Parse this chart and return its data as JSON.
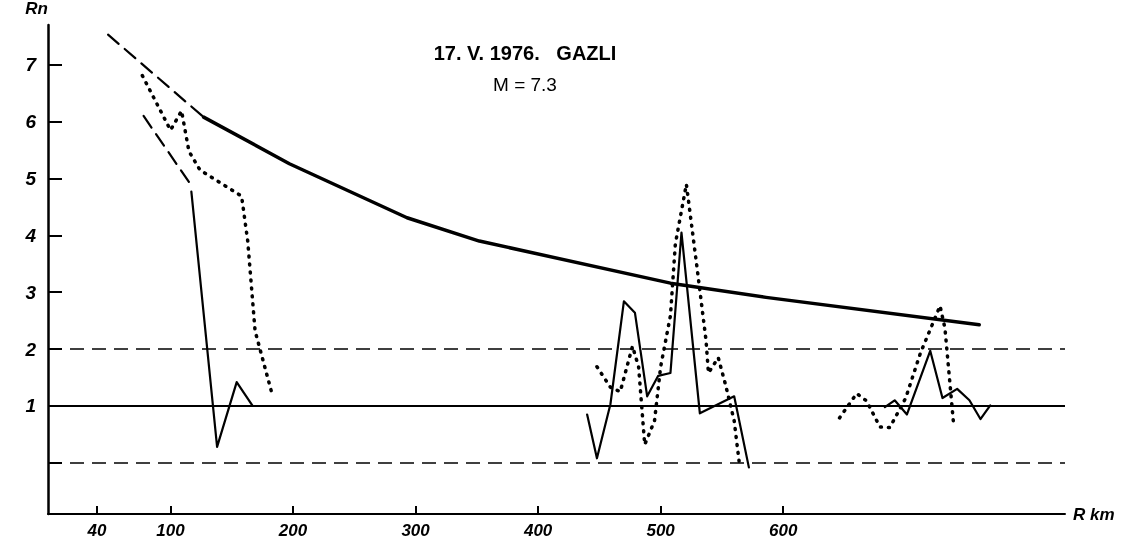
{
  "chart_data": {
    "type": "line",
    "title": "17. V. 1976.   GAZLI",
    "subtitle": "M = 7.3",
    "xlabel": "R km",
    "ylabel": "Rn",
    "xlim": [
      0,
      830
    ],
    "xticks": [
      40,
      100,
      200,
      300,
      400,
      500,
      600
    ],
    "ylim": [
      -0.9,
      7.7
    ],
    "yticks": [
      {
        "value": 0,
        "label": null
      },
      1,
      2,
      3,
      4,
      5,
      6,
      7
    ],
    "grid": false,
    "legend": false,
    "marker": "none",
    "ref_lines": [
      {
        "axis": "y",
        "value": 1,
        "line_style": "solid",
        "color": "#000000"
      },
      {
        "axis": "y",
        "value": 2,
        "line_style": "dashed",
        "color": "#000000"
      },
      {
        "axis": "y",
        "value": 0,
        "line_style": "dashed",
        "color": "#000000"
      }
    ],
    "series": [
      {
        "color": "#000000",
        "line_style": "solid",
        "x": [
          127,
          197,
          293,
          352,
          508,
          586,
          760
        ],
        "values": [
          6.08,
          5.26,
          4.31,
          3.9,
          3.16,
          2.91,
          2.43
        ]
      },
      {
        "color": "#000000",
        "line_style": "dashed",
        "x": [
          49,
          127
        ],
        "values": [
          7.53,
          6.08
        ]
      },
      {
        "color": "#000000",
        "line_style": "dashed",
        "x": [
          78,
          115
        ],
        "values": [
          6.1,
          4.94
        ]
      },
      {
        "color": "#000000",
        "line_style": "solid",
        "x": [
          117,
          138,
          154,
          167,
          300,
          440,
          448,
          459,
          470,
          479,
          489,
          498,
          508,
          517,
          532,
          560,
          572,
          620,
          683,
          691,
          701,
          720,
          730,
          742,
          752,
          761,
          769
        ],
        "values": [
          4.77,
          0.28,
          1.42,
          1.0,
          null,
          0.85,
          0.08,
          1.03,
          2.84,
          2.64,
          1.17,
          1.53,
          1.58,
          4.05,
          0.87,
          1.17,
          -0.08,
          null,
          0.98,
          1.1,
          0.85,
          1.97,
          1.14,
          1.3,
          1.1,
          0.77,
          1.01
        ]
      },
      {
        "color": "#000000",
        "line_style": "dotted",
        "x": [
          77,
          100,
          109,
          115,
          124,
          158,
          163,
          169,
          183,
          300,
          448,
          459,
          467,
          477,
          482,
          487,
          495,
          500,
          508,
          512,
          521,
          530,
          537,
          539,
          547,
          553,
          560,
          564,
          600,
          646,
          660,
          668,
          679,
          687,
          700,
          712,
          728,
          732,
          736,
          739
        ],
        "values": [
          6.81,
          5.85,
          6.19,
          5.48,
          5.15,
          4.69,
          3.9,
          2.32,
          1.2,
          null,
          1.69,
          1.33,
          1.25,
          2.05,
          1.69,
          0.32,
          0.74,
          1.69,
          2.59,
          3.85,
          4.9,
          3.38,
          2.16,
          1.58,
          1.85,
          1.37,
          0.74,
          0.03,
          null,
          0.79,
          1.22,
          1.09,
          0.63,
          0.62,
          1.14,
          1.93,
          2.76,
          2.37,
          1.42,
          0.7
        ]
      }
    ]
  }
}
